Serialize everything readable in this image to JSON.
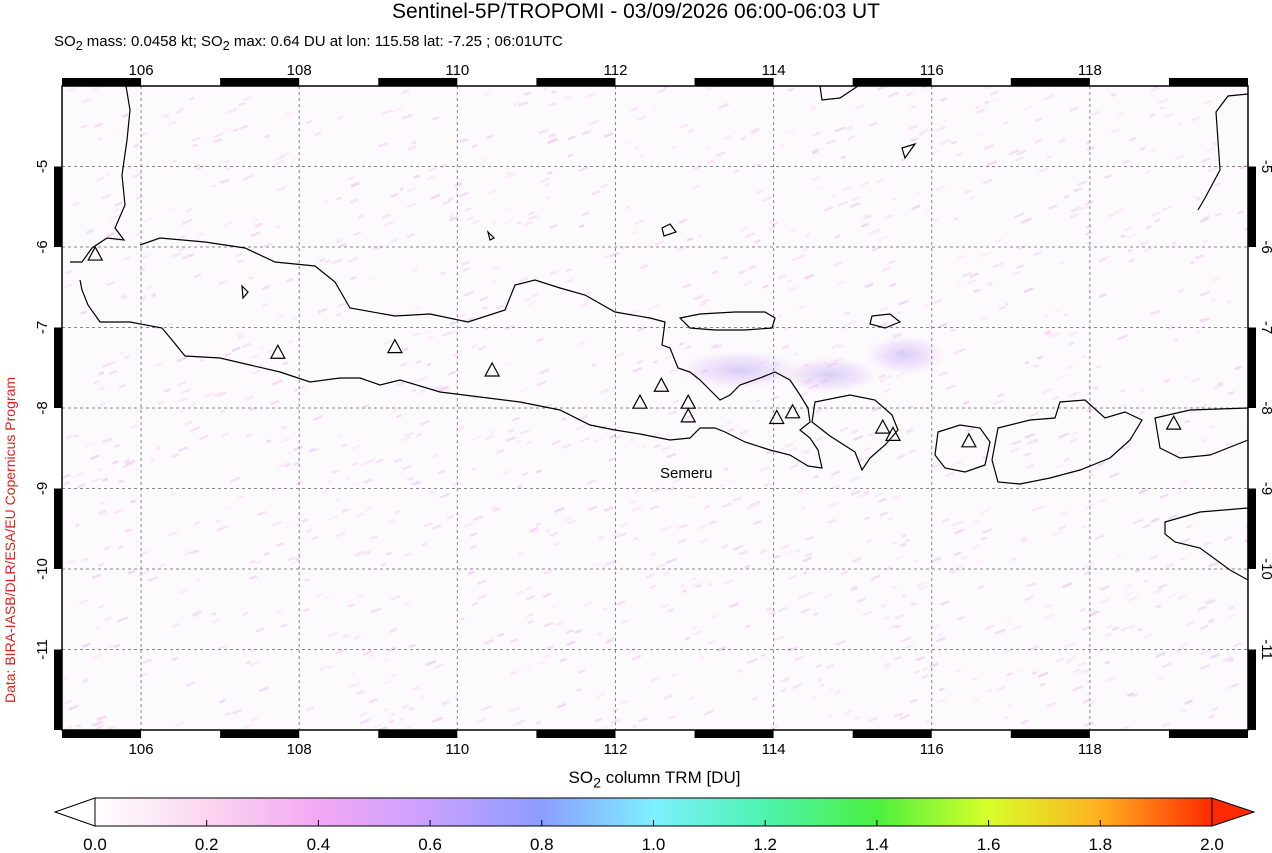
{
  "header": {
    "title": "Sentinel-5P/TROPOMI - 03/09/2026 06:00-06:03 UT",
    "subtitle": {
      "part1": "SO",
      "sub1": "2",
      "part2": " mass: 0.0458 kt; SO",
      "sub2": "2",
      "part3": " max: 0.64 DU at lon: 115.58 lat: -7.25 ; 06:01UTC"
    }
  },
  "credit": "Data: BIRA-IASB/DLR/ESA/EU Copernicus Program",
  "map": {
    "lon_range": [
      105.0,
      120.0
    ],
    "lat_range": [
      -12.0,
      -4.0
    ],
    "lon_ticks": [
      "106",
      "108",
      "110",
      "112",
      "114",
      "116",
      "118"
    ],
    "lat_ticks": [
      "-5",
      "-6",
      "-7",
      "-8",
      "-9",
      "-10",
      "-11"
    ],
    "grid": "dashed",
    "volcano_label": "Semeru",
    "volcanoes": [
      {
        "lon": 105.42,
        "lat": -6.1
      },
      {
        "lon": 107.73,
        "lat": -7.32
      },
      {
        "lon": 109.21,
        "lat": -7.25
      },
      {
        "lon": 110.44,
        "lat": -7.54
      },
      {
        "lon": 112.31,
        "lat": -7.94
      },
      {
        "lon": 112.58,
        "lat": -7.73
      },
      {
        "lon": 112.92,
        "lat": -7.94
      },
      {
        "lon": 112.92,
        "lat": -8.11
      },
      {
        "lon": 114.04,
        "lat": -8.13
      },
      {
        "lon": 114.24,
        "lat": -8.06
      },
      {
        "lon": 115.38,
        "lat": -8.25
      },
      {
        "lon": 115.51,
        "lat": -8.34
      },
      {
        "lon": 116.47,
        "lat": -8.42
      },
      {
        "lon": 119.06,
        "lat": -8.2
      }
    ],
    "colors": {
      "coast": "#000000",
      "plume": "#c9b8f3"
    }
  },
  "colorbar": {
    "title_pre": "SO",
    "title_sub": "2",
    "title_post": " column TRM [DU]",
    "ticks": [
      "0.0",
      "0.2",
      "0.4",
      "0.6",
      "0.8",
      "1.0",
      "1.2",
      "1.4",
      "1.6",
      "1.8",
      "2.0"
    ],
    "range": [
      0.0,
      2.0
    ],
    "colors": [
      "#ffffff",
      "#fbd6f0",
      "#f3a8f4",
      "#c9a0ff",
      "#8c9dff",
      "#7ef0ff",
      "#4ef3b0",
      "#4cf040",
      "#d8ff2a",
      "#ffb020",
      "#ff2a00"
    ]
  }
}
